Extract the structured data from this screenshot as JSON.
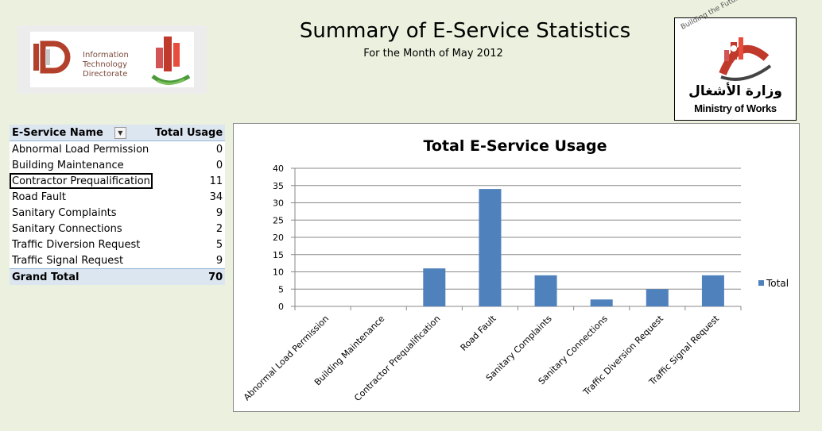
{
  "header": {
    "title": "Summary of E-Service Statistics",
    "subtitle": "For the Month of May 2012"
  },
  "logos": {
    "itd": {
      "line1": "Information",
      "line2": "Technology",
      "line3": "Directorate"
    },
    "ministry": {
      "tagline": "Building the Future",
      "arabic": "وزارة الأشغال",
      "english": "Ministry of Works"
    }
  },
  "pivot": {
    "col_name": "E-Service Name",
    "col_usage": "Total Usage",
    "rows": [
      {
        "name": "Abnormal Load Permission",
        "usage": "0"
      },
      {
        "name": "Building Maintenance",
        "usage": "0"
      },
      {
        "name": "Contractor Prequalification",
        "usage": "11"
      },
      {
        "name": "Road Fault",
        "usage": "34"
      },
      {
        "name": "Sanitary Complaints",
        "usage": "9"
      },
      {
        "name": "Sanitary Connections",
        "usage": "2"
      },
      {
        "name": "Traffic Diversion Request",
        "usage": "5"
      },
      {
        "name": "Traffic Signal Request",
        "usage": "9"
      }
    ],
    "total_label": "Grand Total",
    "total_value": "70"
  },
  "chart_data": {
    "type": "bar",
    "title": "Total E-Service Usage",
    "categories": [
      "Abnormal Load Permission",
      "Building Maintenance",
      "Contractor Prequalification",
      "Road Fault",
      "Sanitary Complaints",
      "Sanitary Connections",
      "Traffic Diversion Request",
      "Traffic Signal Request"
    ],
    "series": [
      {
        "name": "Total",
        "values": [
          0,
          0,
          11,
          34,
          9,
          2,
          5,
          9
        ]
      }
    ],
    "ylim": [
      0,
      40
    ],
    "yticks": [
      0,
      5,
      10,
      15,
      20,
      25,
      30,
      35,
      40
    ],
    "grid": true,
    "legend": "right",
    "bar_color": "#4f81bd",
    "grid_color": "#888888"
  },
  "colors": {
    "background": "#ebf1de",
    "header_fill": "#dce6f1",
    "bar": "#4f81bd"
  }
}
